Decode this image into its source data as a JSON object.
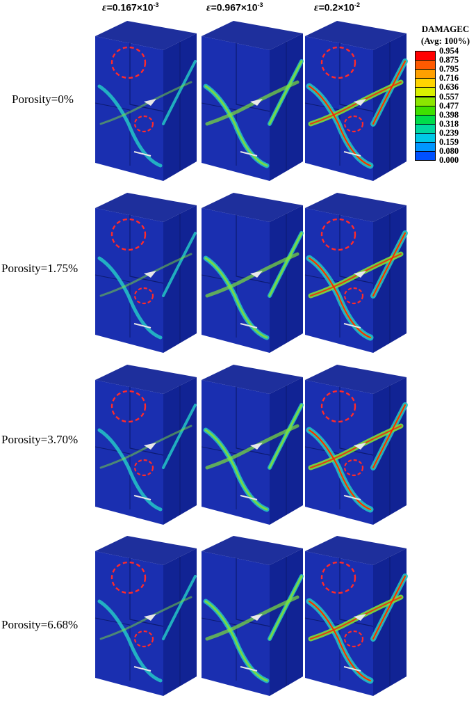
{
  "columns": [
    {
      "eps": "ε",
      "eq": "=0.167×10",
      "exp": "-3"
    },
    {
      "eps": "ε",
      "eq": "=0.967×10",
      "exp": "-3"
    },
    {
      "eps": "ε",
      "eq": "=0.2×10",
      "exp": "-2"
    }
  ],
  "rows": [
    {
      "label": "Porosity=0%"
    },
    {
      "label": "Porosity=1.75%"
    },
    {
      "label": "Porosity=3.70%"
    },
    {
      "label": "Porosity=6.68%"
    }
  ],
  "legend": {
    "title": "DAMAGEC",
    "subtitle": "(Avg: 100%)",
    "values": [
      "0.954",
      "0.875",
      "0.795",
      "0.716",
      "0.636",
      "0.557",
      "0.477",
      "0.398",
      "0.318",
      "0.239",
      "0.159",
      "0.080",
      "0.000"
    ],
    "colors": [
      "#ff0000",
      "#ff5a00",
      "#ffa000",
      "#ffd400",
      "#d9f000",
      "#8ce600",
      "#3fe000",
      "#00dc4a",
      "#00d8a0",
      "#00c8e6",
      "#0096ff",
      "#0050ff",
      "#0000ff"
    ]
  },
  "colors": {
    "cube_front": "#1a2fb0",
    "cube_side": "#112394",
    "cube_top": "#1e2f9c",
    "circle": "#ff2a2a",
    "damage_low": "#24c7c7",
    "damage_mid": "#7ee03a",
    "damage_high": "#ff1a00"
  }
}
